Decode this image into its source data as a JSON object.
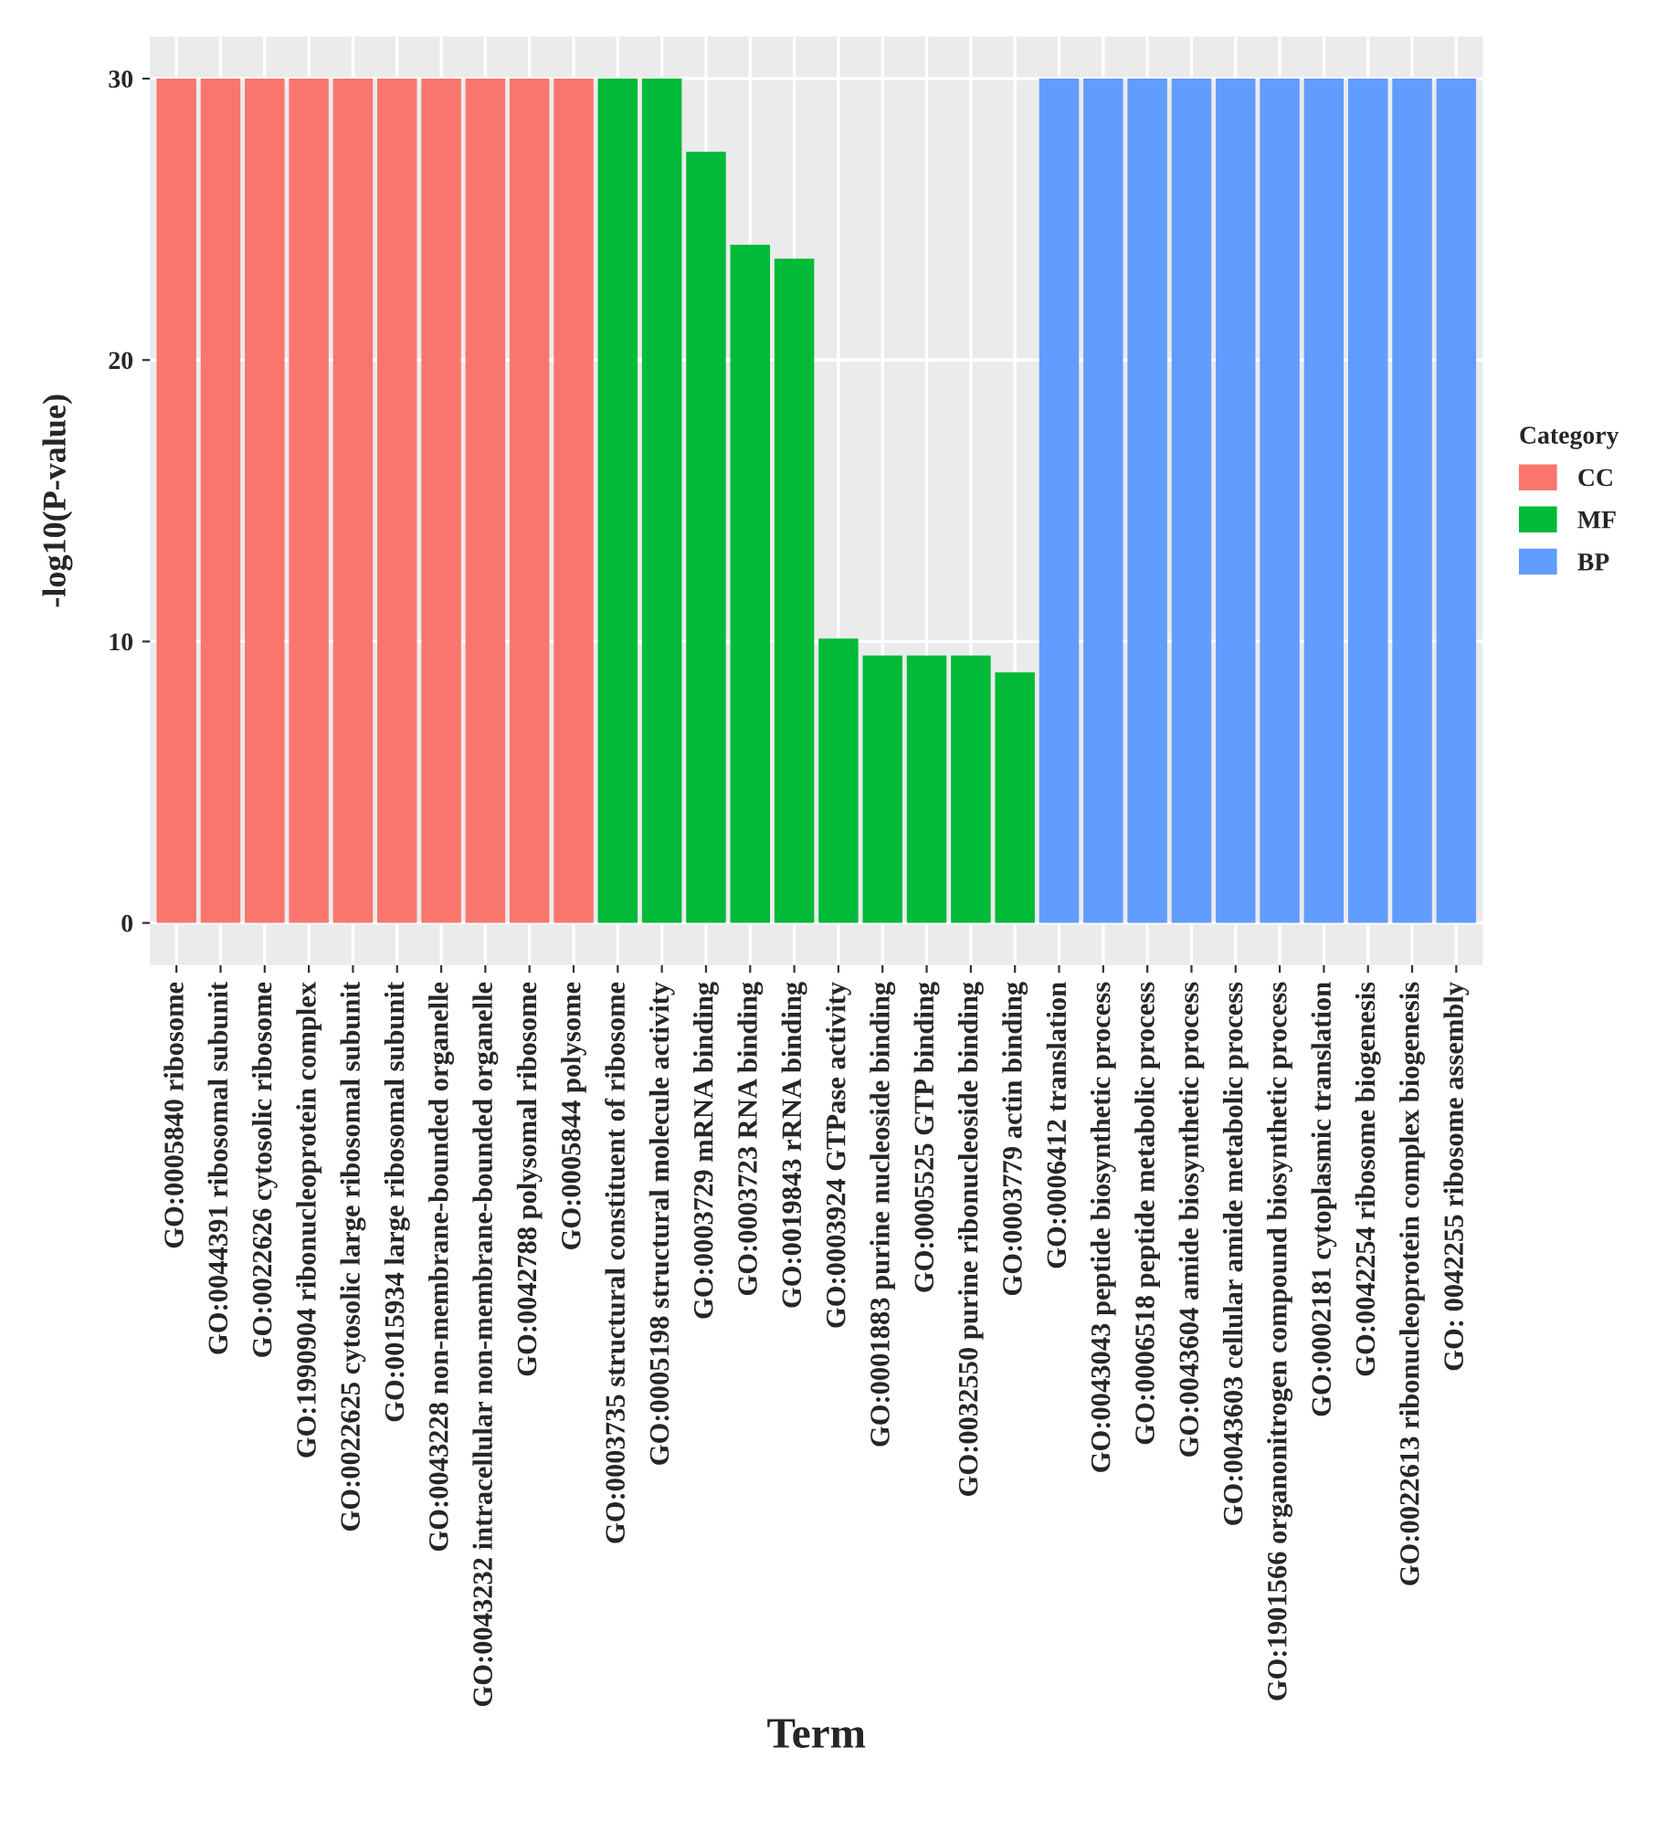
{
  "chart_data": {
    "type": "bar",
    "xlabel": "Term",
    "ylabel": "-log10(P-value)",
    "legend_title": "Category",
    "categories": [
      "GO:0005840 ribosome",
      "GO:0044391 ribosomal subunit",
      "GO:0022626 cytosolic ribosome",
      "GO:1990904 ribonucleoprotein complex",
      "GO:0022625 cytosolic large ribosomal subunit",
      "GO:0015934 large ribosomal subunit",
      "GO:0043228 non-membrane-bounded organelle",
      "GO:0043232 intracellular non-membrane-bounded organelle",
      "GO:0042788 polysomal ribosome",
      "GO:0005844 polysome",
      "GO:0003735 structural constituent of ribosome",
      "GO:0005198 structural molecule activity",
      "GO:0003729 mRNA binding",
      "GO:0003723 RNA binding",
      "GO:0019843 rRNA binding",
      "GO:0003924 GTPase activity",
      "GO:0001883 purine nucleoside binding",
      "GO:0005525 GTP binding",
      "GO:0032550 purine ribonucleoside binding",
      "GO:0003779 actin binding",
      "GO:0006412 translation",
      "GO:0043043 peptide biosynthetic process",
      "GO:0006518 peptide metabolic process",
      "GO:0043604 amide biosynthetic process",
      "GO:0043603 cellular amide metabolic process",
      "GO:1901566 organonitrogen compound biosynthetic process",
      "GO:0002181 cytoplasmic translation",
      "GO:0042254 ribosome biogenesis",
      "GO:0022613 ribonucleoprotein complex biogenesis",
      "GO: 0042255 ribosome assembly"
    ],
    "series": [
      {
        "name": "CC",
        "color": "#f8766d",
        "values": [
          30,
          30,
          30,
          30,
          30,
          30,
          30,
          30,
          30,
          30,
          null,
          null,
          null,
          null,
          null,
          null,
          null,
          null,
          null,
          null,
          null,
          null,
          null,
          null,
          null,
          null,
          null,
          null,
          null,
          null
        ]
      },
      {
        "name": "MF",
        "color": "#00ba38",
        "values": [
          null,
          null,
          null,
          null,
          null,
          null,
          null,
          null,
          null,
          null,
          30,
          30,
          27.4,
          24.1,
          23.6,
          10.1,
          9.5,
          9.5,
          9.5,
          8.9,
          null,
          null,
          null,
          null,
          null,
          null,
          null,
          null,
          null,
          null
        ]
      },
      {
        "name": "BP",
        "color": "#619cff",
        "values": [
          null,
          null,
          null,
          null,
          null,
          null,
          null,
          null,
          null,
          null,
          null,
          null,
          null,
          null,
          null,
          null,
          null,
          null,
          null,
          null,
          30,
          30,
          30,
          30,
          30,
          30,
          30,
          30,
          30,
          30
        ]
      }
    ],
    "ylim": [
      -1.5,
      31.5
    ],
    "yticks": [
      0,
      10,
      20,
      30
    ],
    "grid": true,
    "legend": "right"
  }
}
